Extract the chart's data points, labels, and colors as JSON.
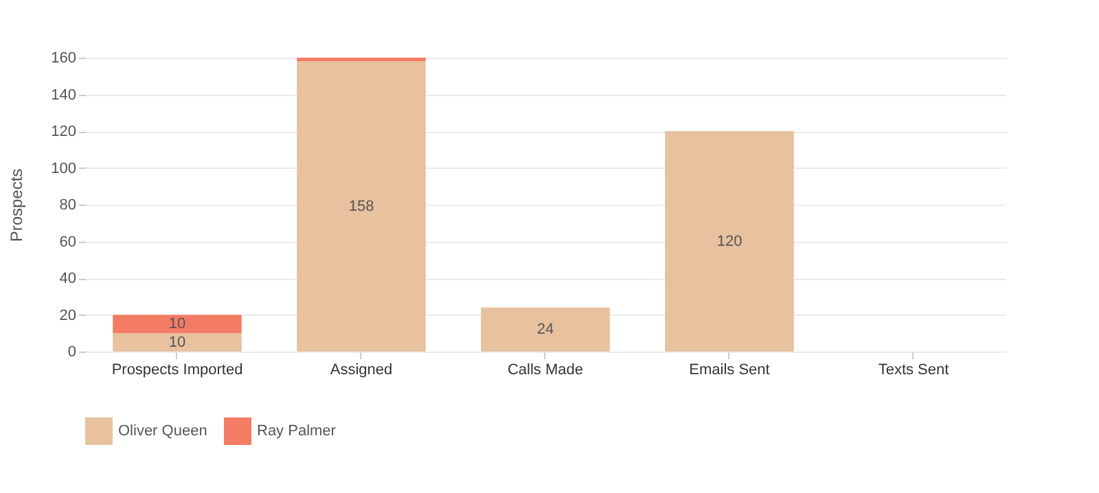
{
  "chart_data": {
    "type": "bar",
    "stacked": true,
    "ylabel": "Prospects",
    "categories": [
      "Prospects Imported",
      "Assigned",
      "Calls Made",
      "Emails Sent",
      "Texts Sent"
    ],
    "series": [
      {
        "name": "Oliver Queen",
        "color": "#e8c19f",
        "values": [
          10,
          158,
          24,
          120,
          null
        ],
        "value_labels": [
          "10",
          "158",
          "24",
          "120",
          null
        ]
      },
      {
        "name": "Ray Palmer",
        "color": "#f47c64",
        "values": [
          10,
          2,
          null,
          null,
          null
        ],
        "value_labels": [
          "10",
          null,
          null,
          null,
          null
        ]
      }
    ],
    "ylim": [
      0,
      160
    ],
    "yticks": [
      0,
      20,
      40,
      60,
      80,
      100,
      120,
      140,
      160
    ],
    "grid": "y",
    "legend": "bottom left"
  }
}
